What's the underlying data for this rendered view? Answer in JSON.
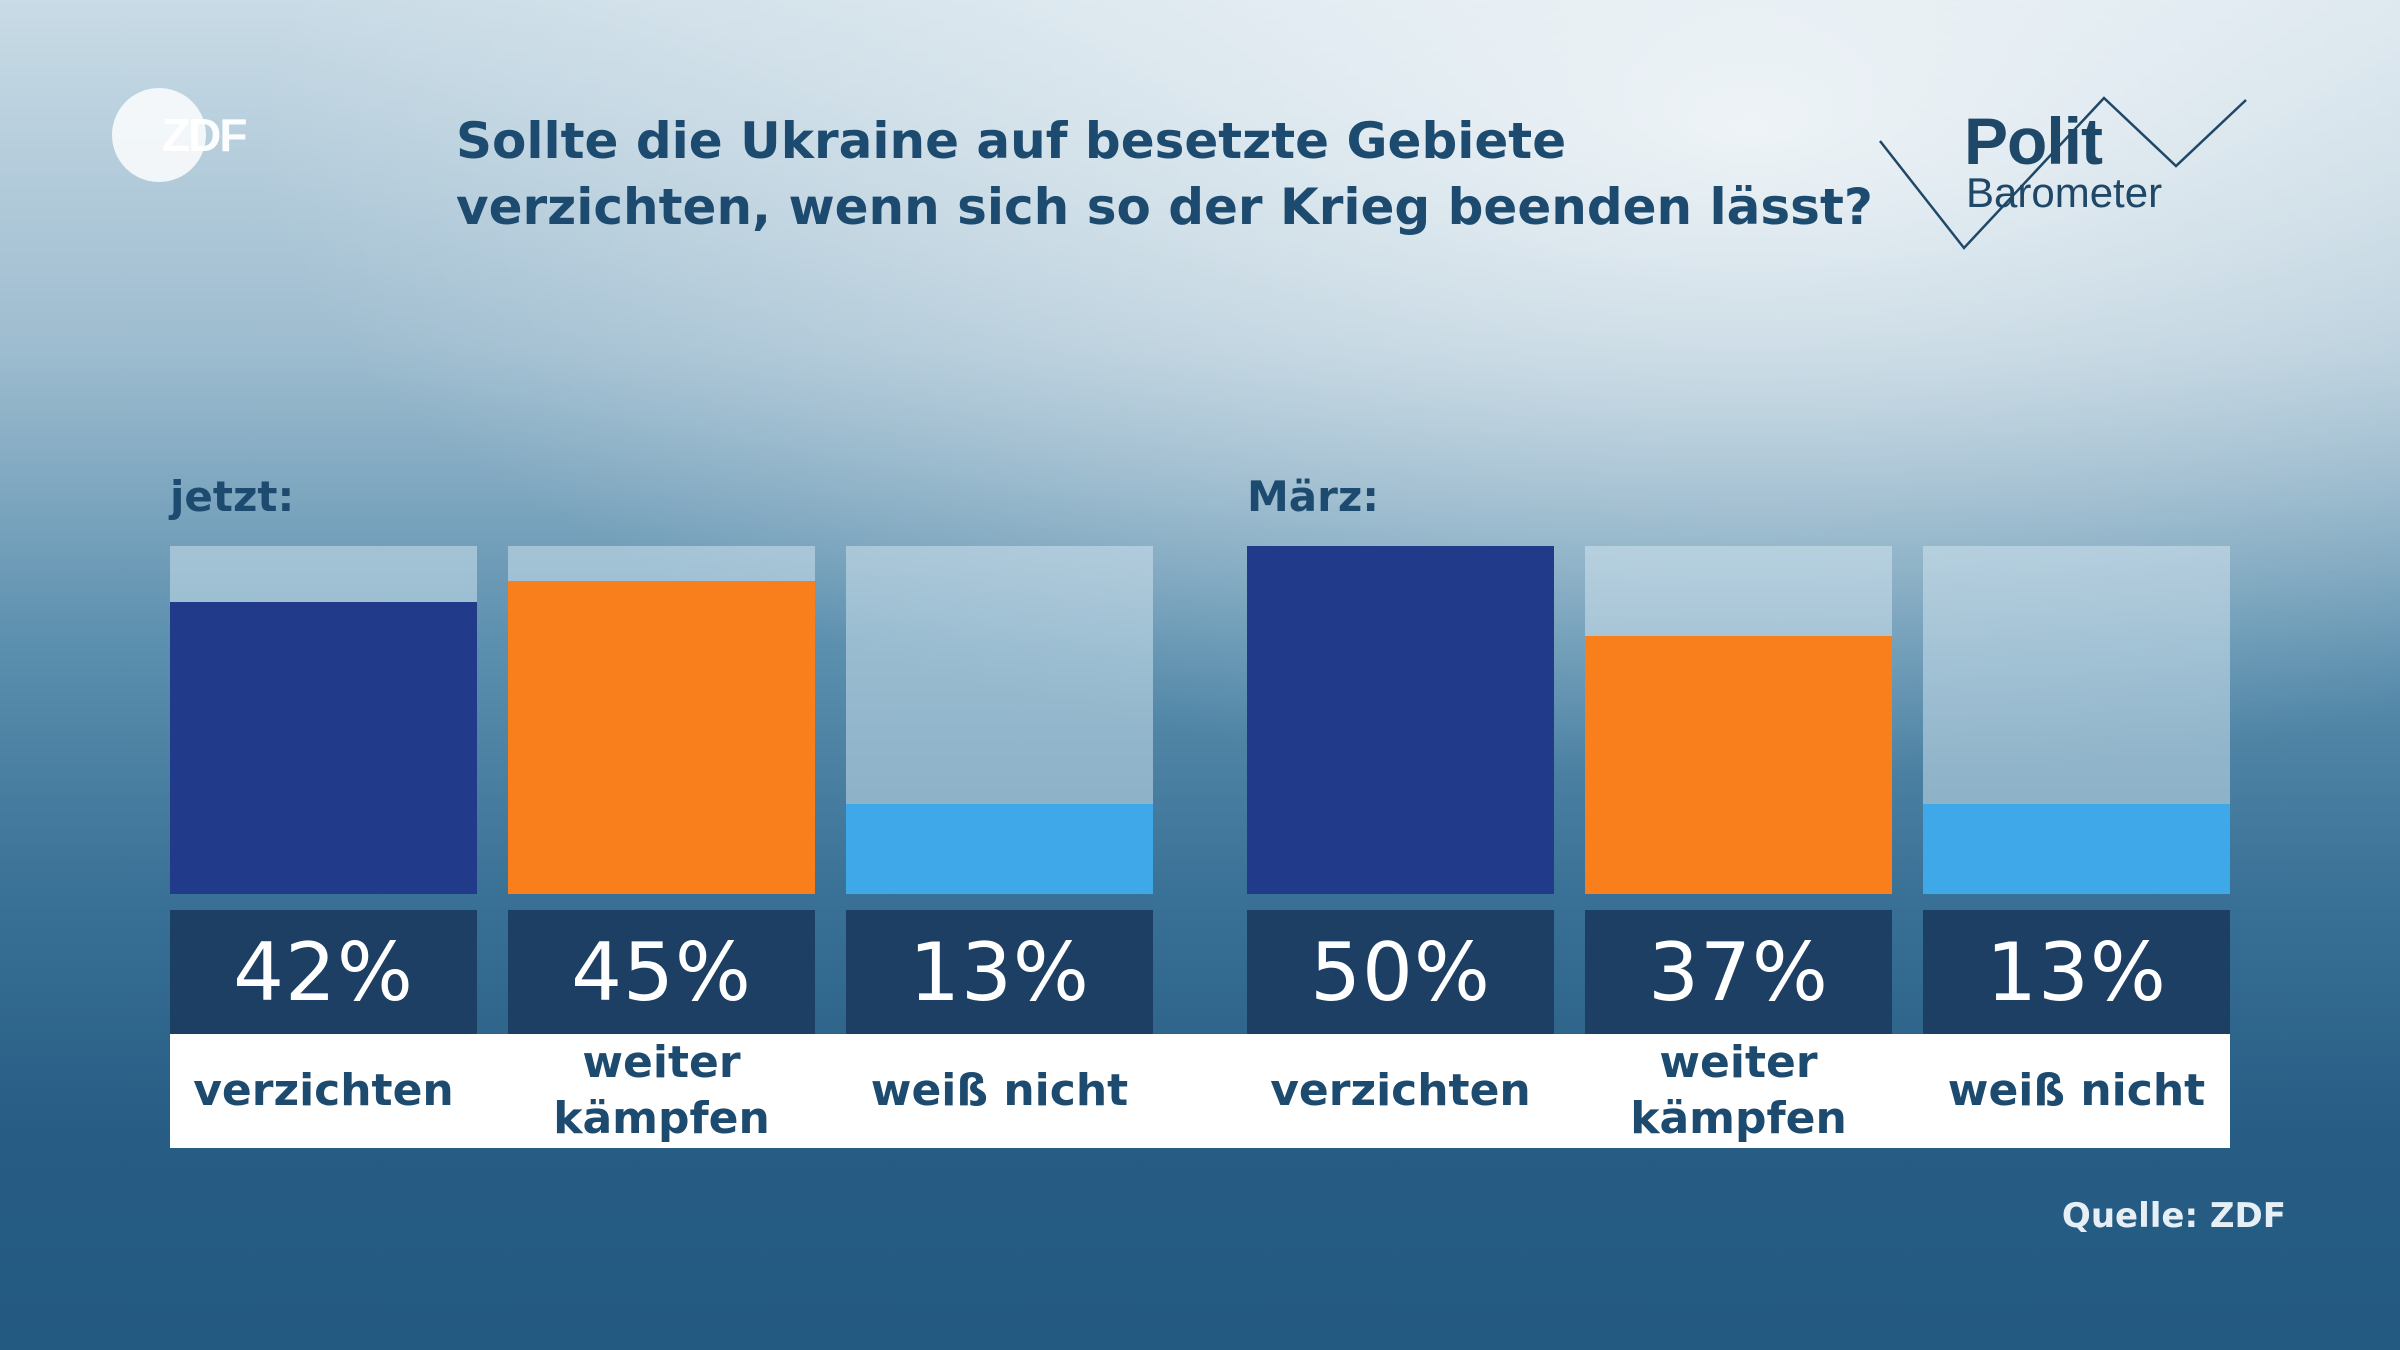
{
  "logo": {
    "text": "ZDF"
  },
  "title_lines": [
    "Sollte die Ukraine auf besetzte Gebiete",
    "verzichten, wenn sich so der Krieg beenden lässt?"
  ],
  "brand": {
    "line1": "Polit",
    "line2": "Barometer"
  },
  "colors": {
    "verzichten": "#213a8a",
    "weiter_kaempfen": "#f97f1c",
    "weiss_nicht": "#3fa8e8",
    "value_box": "#1c3f63"
  },
  "chart_data": {
    "type": "bar",
    "ylim": [
      0,
      50
    ],
    "groups": [
      {
        "name": "jetzt:",
        "bars": [
          {
            "category": "verzichten",
            "label_lines": [
              "verzichten"
            ],
            "value": 42,
            "display": "42%",
            "color": "#213a8a"
          },
          {
            "category": "weiter kämpfen",
            "label_lines": [
              "weiter",
              "kämpfen"
            ],
            "value": 45,
            "display": "45%",
            "color": "#f97f1c"
          },
          {
            "category": "weiß nicht",
            "label_lines": [
              "weiß nicht"
            ],
            "value": 13,
            "display": "13%",
            "color": "#3fa8e8"
          }
        ]
      },
      {
        "name": "März:",
        "bars": [
          {
            "category": "verzichten",
            "label_lines": [
              "verzichten"
            ],
            "value": 50,
            "display": "50%",
            "color": "#213a8a"
          },
          {
            "category": "weiter kämpfen",
            "label_lines": [
              "weiter",
              "kämpfen"
            ],
            "value": 37,
            "display": "37%",
            "color": "#f97f1c"
          },
          {
            "category": "weiß nicht",
            "label_lines": [
              "weiß nicht"
            ],
            "value": 13,
            "display": "13%",
            "color": "#3fa8e8"
          }
        ]
      }
    ]
  },
  "source": "Quelle: ZDF"
}
